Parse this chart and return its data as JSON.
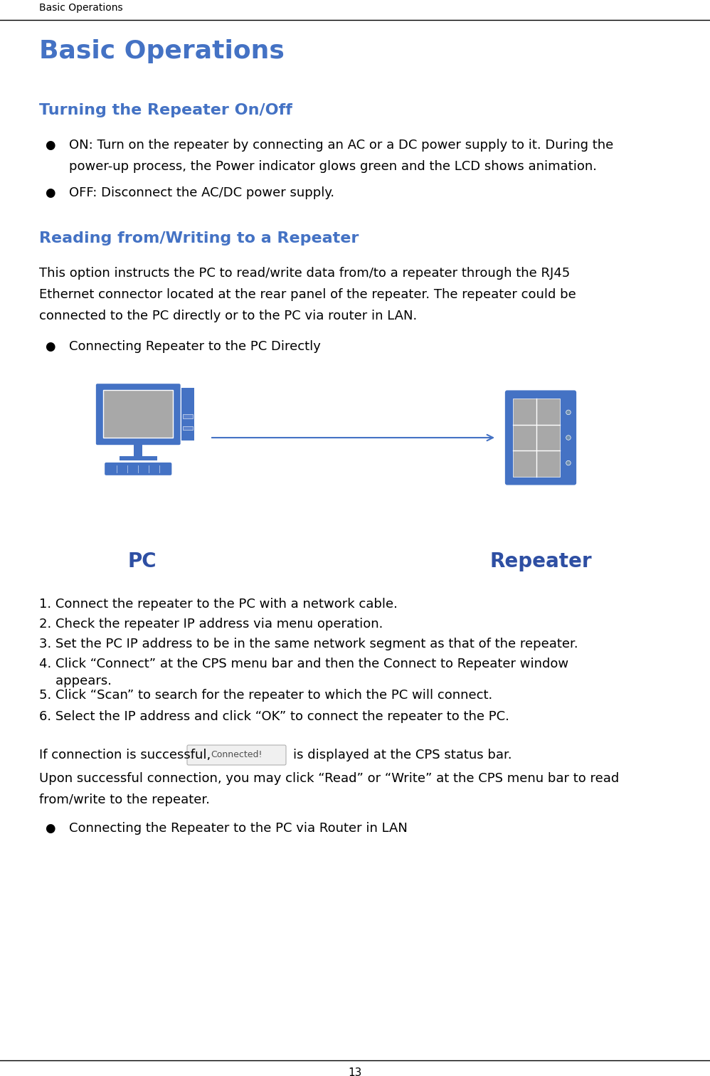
{
  "header_text": "Basic Operations",
  "footer_page_num": "13",
  "title": "Basic Operations",
  "title_color": "#4472C4",
  "section1_title": "Turning the Repeater On/Off",
  "section1_color": "#4472C4",
  "bullet1_text": "ON: Turn on the repeater by connecting an AC or a DC power supply to it. During the\n      power-up process, the Power indicator glows green and the LCD shows animation.",
  "bullet2_text": "OFF: Disconnect the AC/DC power supply.",
  "section2_title": "Reading from/Writing to a Repeater",
  "section2_color": "#4472C4",
  "section2_para": "This option instructs the PC to read/write data from/to a repeater through the RJ45\nEthernet connector located at the rear panel of the repeater. The repeater could be\nconnected to the PC directly or to the PC via router in LAN.",
  "subsection1_bullet": "Connecting Repeater to the PC Directly",
  "pc_label": "PC",
  "repeater_label": "Repeater",
  "pc_label_color": "#2E4FA3",
  "repeater_label_color": "#2E4FA3",
  "arrow_color": "#4472C4",
  "pc_color": "#4472C4",
  "repeater_color": "#4472C4",
  "screen_color": "#A8A8A8",
  "numbered_steps": [
    "1. Connect the repeater to the PC with a network cable.",
    "2. Check the repeater IP address via menu operation.",
    "3. Set the PC IP address to be in the same network segment as that of the repeater.",
    "4. Click “Connect” at the CPS menu bar and then the Connect to Repeater window\n    appears.",
    "5. Click “Scan” to search for the repeater to which the PC will connect.",
    "6. Select the IP address and click “OK” to connect the repeater to the PC."
  ],
  "connected_text_pre": "If connection is successful,",
  "connected_text_post": "is displayed at the CPS status bar.",
  "connected_badge_text": "Connected!",
  "upon_text": "Upon successful connection, you may click “Read” or “Write” at the CPS menu bar to read\nfrom/write to the repeater.",
  "subsection2_bullet": "Connecting the Repeater to the PC via Router in LAN",
  "bg_color": "#FFFFFF",
  "text_color": "#000000",
  "body_fontsize": 13,
  "header_fontsize": 10
}
